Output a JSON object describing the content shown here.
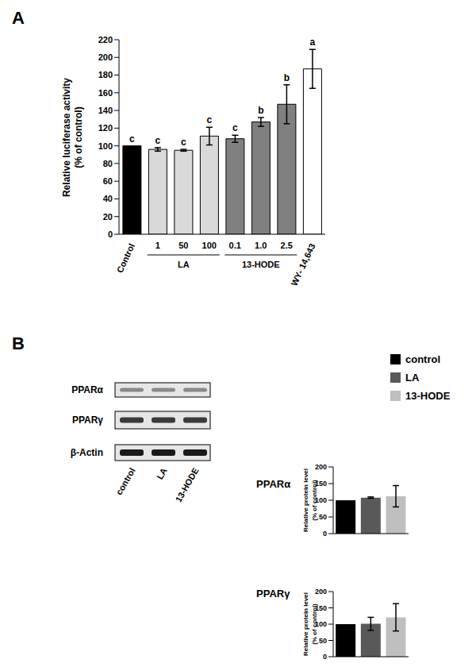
{
  "panel_labels": [
    "A",
    "B"
  ],
  "chart_data": [
    {
      "type": "bar",
      "ylabel": [
        "Relative luciferase activity",
        "(% of control)"
      ],
      "categories": [
        "Control",
        "1",
        "50",
        "100",
        "0.1",
        "1.0",
        "2.5",
        "WY- 14,643"
      ],
      "groups": [
        null,
        "LA",
        "LA",
        "LA",
        "13-HODE",
        "13-HODE",
        "13-HODE",
        null
      ],
      "values": [
        100,
        96,
        95,
        111,
        108,
        127,
        147,
        187
      ],
      "errors": [
        0,
        2,
        1,
        10,
        4,
        5,
        22,
        22
      ],
      "annotations": [
        "c",
        "c",
        "c",
        "c",
        "c",
        "b",
        "b",
        "a"
      ],
      "colors": [
        "#000000",
        "#d9d9d9",
        "#d9d9d9",
        "#d9d9d9",
        "#808080",
        "#808080",
        "#808080",
        "#ffffff"
      ],
      "ylim": [
        0,
        220
      ],
      "yticks": [
        0,
        20,
        40,
        60,
        80,
        100,
        120,
        140,
        160,
        180,
        200,
        220
      ],
      "grid": false
    },
    {
      "type": "bar",
      "title": "PPARα",
      "ylabel": [
        "Relative protein level",
        "(% of control)"
      ],
      "categories": [
        "control",
        "LA",
        "13-HODE"
      ],
      "values": [
        100,
        108,
        112
      ],
      "errors": [
        0,
        2,
        32
      ],
      "colors": [
        "#000000",
        "#595959",
        "#bfbfbf"
      ],
      "ylim": [
        0,
        200
      ],
      "yticks": [
        0,
        50,
        100,
        150,
        200
      ],
      "tick_labels": "y",
      "legend": "top right",
      "grid": false
    },
    {
      "type": "bar",
      "title": "PPARγ",
      "ylabel": [
        "Relative protein level",
        "(% of control)"
      ],
      "categories": [
        "control",
        "LA",
        "13-HODE"
      ],
      "values": [
        100,
        101,
        121
      ],
      "errors": [
        0,
        20,
        42
      ],
      "colors": [
        "#000000",
        "#595959",
        "#bfbfbf"
      ],
      "ylim": [
        0,
        200
      ],
      "yticks": [
        0,
        50,
        100,
        150,
        200
      ],
      "tick_labels": "y",
      "grid": false
    }
  ],
  "blot": {
    "rows": [
      "PPARα",
      "PPARγ",
      "β-Actin"
    ],
    "lanes": [
      "control",
      "LA",
      "13-HODE"
    ]
  }
}
